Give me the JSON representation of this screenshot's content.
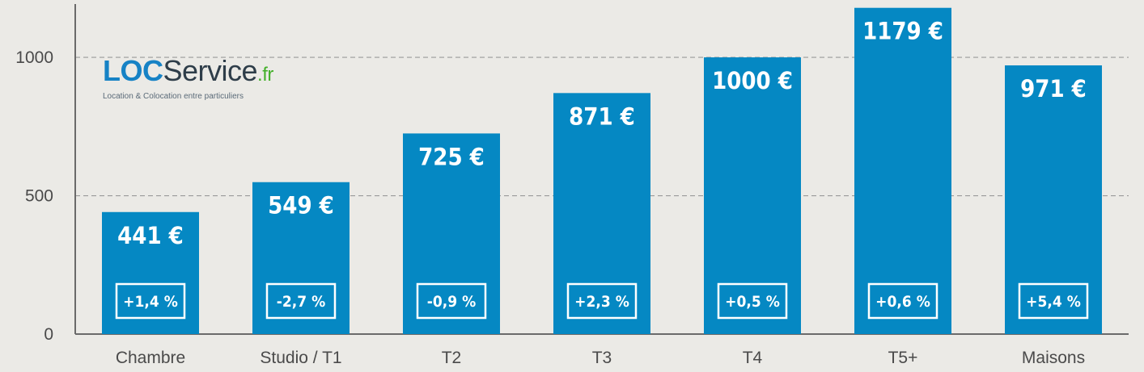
{
  "colors": {
    "background": "#ebeae6",
    "bar": "#0588c3",
    "bar_text": "#ffffff",
    "axis_text": "#4a4a4a",
    "grid": "#9a9a9a",
    "logo_blue": "#1682c5",
    "logo_dark": "#2e3d49",
    "logo_green": "#43b02a"
  },
  "logo": {
    "part1": "LOC",
    "part2": "Service",
    "part3": ".fr",
    "tagline": "Location & Colocation entre particuliers"
  },
  "chart_data": {
    "type": "bar",
    "title": "",
    "xlabel": "",
    "ylabel": "",
    "categories": [
      "Chambre",
      "Studio / T1",
      "T2",
      "T3",
      "T4",
      "T5+",
      "Maisons"
    ],
    "values": [
      441,
      549,
      725,
      871,
      1000,
      1179,
      971
    ],
    "value_labels": [
      "441 €",
      "549 €",
      "725 €",
      "871 €",
      "1000 €",
      "1179 €",
      "971 €"
    ],
    "change_labels": [
      "+1,4 %",
      "-2,7 %",
      "-0,9 %",
      "+2,3 %",
      "+0,5 %",
      "+0,6 %",
      "+5,4 %"
    ],
    "y_ticks": [
      0,
      500,
      1000
    ],
    "y_tick_labels": [
      "0",
      "500",
      "1000"
    ],
    "ylim": [
      0,
      1200
    ],
    "grid": "dashed horizontal at 500 and 1000",
    "legend": "none"
  }
}
